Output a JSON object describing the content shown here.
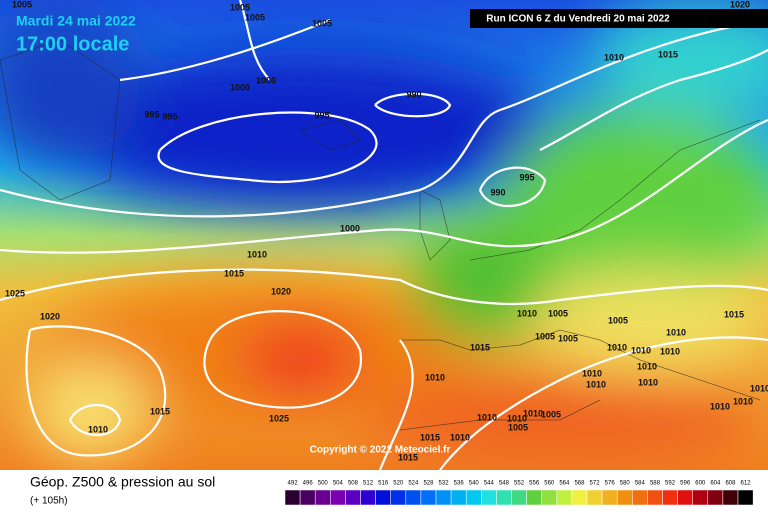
{
  "header": {
    "date": "Mardi 24 mai 2022",
    "time": "17:00 locale",
    "run": "Run ICON 6 Z du Vendredi 20 mai 2022"
  },
  "copyright": "Copyright © 2022 Meteociel.fr",
  "legend": {
    "title": "Géop. Z500 & pression au sol",
    "lead": "(+ 105h)",
    "scale": [
      492,
      496,
      500,
      504,
      508,
      512,
      516,
      520,
      524,
      528,
      532,
      536,
      540,
      544,
      548,
      552,
      556,
      560,
      564,
      568,
      572,
      576,
      580,
      584,
      588,
      592,
      596,
      600,
      604,
      608,
      612
    ]
  },
  "isobar_labels": [
    "1005",
    "1005",
    "1005",
    "1005",
    "1020",
    "1010",
    "1015",
    "1000",
    "1000",
    "995",
    "995",
    "995",
    "990",
    "995",
    "990",
    "1000",
    "1010",
    "1015",
    "1025",
    "1020",
    "1020",
    "1010",
    "1005",
    "1005",
    "1015",
    "1010",
    "1005",
    "1005",
    "1015",
    "1010",
    "1010",
    "1010",
    "1010",
    "1010",
    "1010",
    "1010",
    "1010",
    "1010",
    "1015",
    "1025",
    "1010",
    "1010",
    "1010",
    "1010",
    "1005",
    "1005",
    "1010",
    "1010",
    "1015",
    "1010",
    "1015"
  ]
}
